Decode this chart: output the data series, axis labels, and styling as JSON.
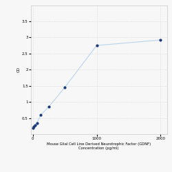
{
  "x": [
    0,
    15.625,
    31.25,
    62.5,
    125,
    250,
    500,
    1000,
    2000
  ],
  "y": [
    0.2,
    0.23,
    0.27,
    0.35,
    0.6,
    0.85,
    1.45,
    2.75,
    2.92
  ],
  "line_color": "#b8d4ee",
  "marker_color": "#1a3a7a",
  "marker_size": 3,
  "xlabel_line1": "Mouse Glial Cell Line Derived Neurotrophic Factor (GDNF)",
  "xlabel_line2": "Concentration (pg/ml)",
  "ylabel": "OD",
  "xlim": [
    -30,
    2100
  ],
  "ylim": [
    0.0,
    4.0
  ],
  "yticks": [
    0.5,
    1.0,
    1.5,
    2.0,
    2.5,
    3.0,
    3.5
  ],
  "ytick_labels": [
    "0.5",
    "1",
    "1.5",
    "2",
    "2.5",
    "3",
    "3.5"
  ],
  "xtick_positions": [
    0,
    1000,
    2000
  ],
  "xtick_labels": [
    "0",
    "1000",
    "2000"
  ],
  "grid_color": "#dddddd",
  "background_color": "#f7f7f7",
  "label_fontsize": 3.8,
  "tick_fontsize": 4.0
}
